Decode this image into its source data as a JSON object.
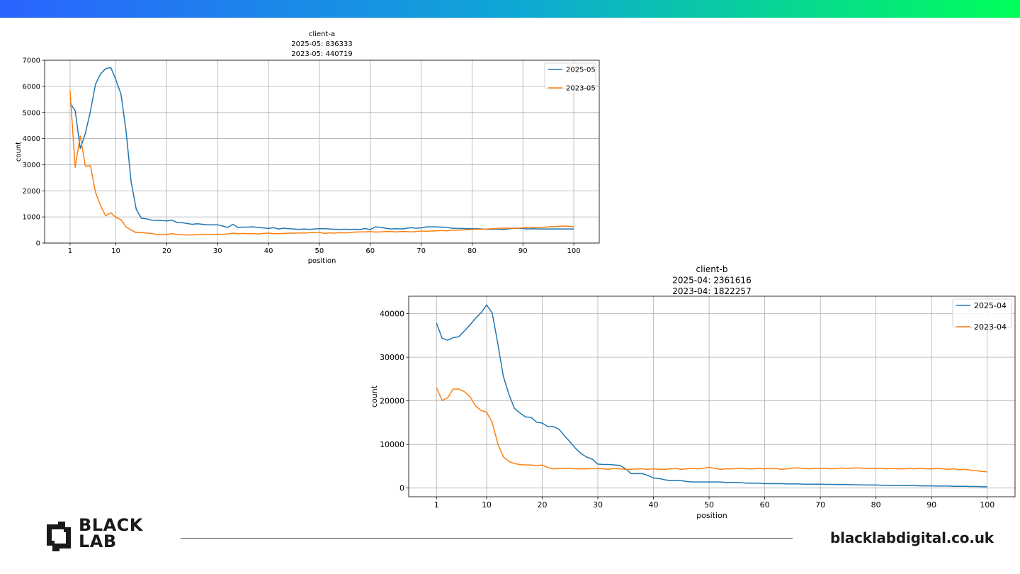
{
  "brand": {
    "gradient_start": "#2b63ff",
    "gradient_end": "#00ff5a",
    "logo_line1": "BLACK",
    "logo_line2": "LAB",
    "website": "blacklabdigital.co.uk"
  },
  "chart_data": [
    {
      "type": "line",
      "title": "client-a",
      "subtitle_lines": [
        "2025-05: 836333",
        "2023-05: 440719"
      ],
      "xlabel": "position",
      "ylabel": "count",
      "xlim": [
        -4,
        105
      ],
      "ylim": [
        0,
        7000
      ],
      "xticks": [
        1,
        10,
        20,
        30,
        40,
        50,
        60,
        70,
        80,
        90,
        100
      ],
      "yticks": [
        0,
        1000,
        2000,
        3000,
        4000,
        5000,
        6000,
        7000
      ],
      "grid": true,
      "legend_position": "top-right",
      "series": [
        {
          "name": "2025-05",
          "color": "#1f77b4",
          "x": [
            1,
            2,
            3,
            4,
            5,
            6,
            7,
            8,
            9,
            10,
            11,
            12,
            13,
            14,
            15,
            16,
            17,
            18,
            19,
            20,
            21,
            22,
            23,
            24,
            25,
            26,
            27,
            28,
            29,
            30,
            31,
            32,
            33,
            34,
            35,
            36,
            37,
            38,
            39,
            40,
            41,
            42,
            43,
            44,
            45,
            46,
            47,
            48,
            49,
            50,
            51,
            52,
            53,
            54,
            55,
            56,
            57,
            58,
            59,
            60,
            61,
            62,
            63,
            64,
            65,
            66,
            67,
            68,
            69,
            70,
            71,
            72,
            73,
            74,
            75,
            76,
            77,
            78,
            79,
            80,
            81,
            82,
            83,
            84,
            85,
            86,
            87,
            88,
            89,
            90,
            91,
            92,
            93,
            94,
            95,
            96,
            97,
            98,
            99,
            100
          ],
          "y": [
            5350,
            5080,
            3620,
            4200,
            5050,
            6080,
            6480,
            6680,
            6720,
            6250,
            5700,
            4300,
            2350,
            1300,
            950,
            930,
            880,
            870,
            860,
            850,
            880,
            790,
            780,
            750,
            720,
            740,
            720,
            700,
            700,
            700,
            650,
            600,
            720,
            600,
            610,
            610,
            620,
            600,
            580,
            560,
            590,
            540,
            570,
            550,
            540,
            520,
            540,
            520,
            540,
            550,
            550,
            540,
            530,
            520,
            530,
            520,
            530,
            520,
            560,
            510,
            620,
            600,
            570,
            540,
            550,
            540,
            560,
            590,
            570,
            580,
            620,
            620,
            620,
            610,
            600,
            570,
            560,
            560,
            550,
            550,
            550,
            540,
            530,
            530,
            540,
            520,
            540,
            560,
            560,
            560,
            540,
            550,
            540,
            540,
            540,
            540,
            540,
            540,
            540,
            540
          ]
        },
        {
          "name": "2023-05",
          "color": "#ff7f0e",
          "x": [
            1,
            2,
            3,
            4,
            5,
            6,
            7,
            8,
            9,
            10,
            11,
            12,
            13,
            14,
            15,
            16,
            17,
            18,
            19,
            20,
            21,
            22,
            23,
            24,
            25,
            26,
            27,
            28,
            29,
            30,
            31,
            32,
            33,
            34,
            35,
            36,
            37,
            38,
            39,
            40,
            41,
            42,
            43,
            44,
            45,
            46,
            47,
            48,
            49,
            50,
            51,
            52,
            53,
            54,
            55,
            56,
            57,
            58,
            59,
            60,
            61,
            62,
            63,
            64,
            65,
            66,
            67,
            68,
            69,
            70,
            71,
            72,
            73,
            74,
            75,
            76,
            77,
            78,
            79,
            80,
            81,
            82,
            83,
            84,
            85,
            86,
            87,
            88,
            89,
            90,
            91,
            92,
            93,
            94,
            95,
            96,
            97,
            98,
            99,
            100
          ],
          "y": [
            5850,
            2900,
            4100,
            2950,
            2960,
            1950,
            1430,
            1040,
            1160,
            980,
            900,
            620,
            500,
            400,
            410,
            380,
            370,
            330,
            320,
            330,
            360,
            330,
            320,
            310,
            310,
            320,
            340,
            330,
            330,
            340,
            330,
            350,
            380,
            360,
            370,
            360,
            360,
            350,
            370,
            380,
            360,
            360,
            370,
            380,
            380,
            390,
            380,
            400,
            400,
            410,
            370,
            390,
            380,
            400,
            390,
            400,
            420,
            430,
            430,
            440,
            420,
            430,
            440,
            440,
            430,
            440,
            440,
            430,
            440,
            460,
            450,
            460,
            470,
            480,
            470,
            490,
            490,
            500,
            510,
            520,
            530,
            530,
            540,
            550,
            560,
            570,
            570,
            570,
            570,
            580,
            600,
            600,
            590,
            600,
            620,
            630,
            640,
            650,
            640,
            620
          ]
        }
      ]
    },
    {
      "type": "line",
      "title": "client-b",
      "subtitle_lines": [
        "2025-04: 2361616",
        "2023-04: 1822257"
      ],
      "xlabel": "position",
      "ylabel": "count",
      "xlim": [
        -4,
        105
      ],
      "ylim": [
        -2000,
        44000
      ],
      "xticks": [
        1,
        10,
        20,
        30,
        40,
        50,
        60,
        70,
        80,
        90,
        100
      ],
      "yticks": [
        0,
        10000,
        20000,
        30000,
        40000
      ],
      "grid": true,
      "legend_position": "top-right",
      "series": [
        {
          "name": "2025-04",
          "color": "#1f77b4",
          "x": [
            1,
            2,
            3,
            4,
            5,
            6,
            7,
            8,
            9,
            10,
            11,
            12,
            13,
            14,
            15,
            16,
            17,
            18,
            19,
            20,
            21,
            22,
            23,
            24,
            25,
            26,
            27,
            28,
            29,
            30,
            31,
            32,
            33,
            34,
            35,
            36,
            37,
            38,
            39,
            40,
            41,
            42,
            43,
            44,
            45,
            46,
            47,
            48,
            49,
            50,
            51,
            52,
            53,
            54,
            55,
            56,
            57,
            58,
            59,
            60,
            61,
            62,
            63,
            64,
            65,
            66,
            67,
            68,
            69,
            70,
            71,
            72,
            73,
            74,
            75,
            76,
            77,
            78,
            79,
            80,
            81,
            82,
            83,
            84,
            85,
            86,
            87,
            88,
            89,
            90,
            91,
            92,
            93,
            94,
            95,
            96,
            97,
            98,
            99,
            100
          ],
          "y": [
            37800,
            34400,
            33900,
            34500,
            34700,
            36000,
            37400,
            38900,
            40200,
            42000,
            40200,
            33200,
            25700,
            21500,
            18300,
            17200,
            16300,
            16200,
            15100,
            14900,
            14100,
            14100,
            13500,
            12000,
            10600,
            9100,
            7900,
            7100,
            6600,
            5500,
            5400,
            5400,
            5300,
            5200,
            4400,
            3300,
            3300,
            3300,
            2900,
            2300,
            2200,
            1900,
            1700,
            1700,
            1700,
            1500,
            1400,
            1400,
            1400,
            1400,
            1400,
            1400,
            1300,
            1300,
            1300,
            1200,
            1100,
            1100,
            1100,
            1000,
            1000,
            1000,
            1000,
            950,
            950,
            950,
            900,
            900,
            900,
            900,
            850,
            850,
            800,
            800,
            800,
            750,
            750,
            700,
            700,
            700,
            650,
            650,
            600,
            600,
            600,
            550,
            550,
            500,
            500,
            500,
            450,
            450,
            450,
            400,
            400,
            400,
            350,
            350,
            300,
            300
          ]
        },
        {
          "name": "2023-04",
          "color": "#ff7f0e",
          "x": [
            1,
            2,
            3,
            4,
            5,
            6,
            7,
            8,
            9,
            10,
            11,
            12,
            13,
            14,
            15,
            16,
            17,
            18,
            19,
            20,
            21,
            22,
            23,
            24,
            25,
            26,
            27,
            28,
            29,
            30,
            31,
            32,
            33,
            34,
            35,
            36,
            37,
            38,
            39,
            40,
            41,
            42,
            43,
            44,
            45,
            46,
            47,
            48,
            49,
            50,
            51,
            52,
            53,
            54,
            55,
            56,
            57,
            58,
            59,
            60,
            61,
            62,
            63,
            64,
            65,
            66,
            67,
            68,
            69,
            70,
            71,
            72,
            73,
            74,
            75,
            76,
            77,
            78,
            79,
            80,
            81,
            82,
            83,
            84,
            85,
            86,
            87,
            88,
            89,
            90,
            91,
            92,
            93,
            94,
            95,
            96,
            97,
            98,
            99,
            100
          ],
          "y": [
            23000,
            20100,
            20700,
            22700,
            22700,
            22100,
            21000,
            18900,
            17800,
            17400,
            15100,
            10200,
            7200,
            6100,
            5600,
            5400,
            5300,
            5300,
            5100,
            5300,
            4700,
            4400,
            4500,
            4500,
            4500,
            4400,
            4400,
            4400,
            4500,
            4500,
            4400,
            4300,
            4500,
            4400,
            4300,
            4300,
            4400,
            4400,
            4300,
            4400,
            4300,
            4300,
            4400,
            4500,
            4300,
            4400,
            4500,
            4400,
            4500,
            4800,
            4500,
            4300,
            4400,
            4400,
            4500,
            4500,
            4400,
            4400,
            4500,
            4400,
            4500,
            4500,
            4300,
            4400,
            4600,
            4600,
            4500,
            4400,
            4500,
            4500,
            4500,
            4400,
            4500,
            4600,
            4500,
            4600,
            4600,
            4500,
            4500,
            4500,
            4500,
            4400,
            4500,
            4400,
            4400,
            4500,
            4400,
            4500,
            4400,
            4400,
            4500,
            4400,
            4300,
            4400,
            4200,
            4300,
            4100,
            4000,
            3800,
            3700
          ]
        }
      ]
    }
  ]
}
